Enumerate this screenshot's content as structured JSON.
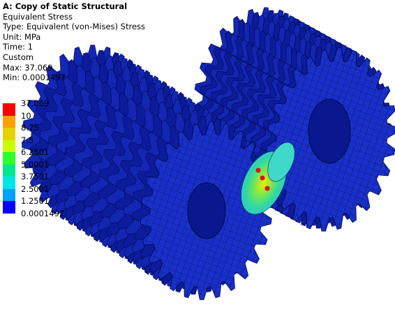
{
  "header": {
    "title": "A: Copy of Static Structural",
    "lines": [
      "Equivalent Stress",
      "Type: Equivalent (von-Mises) Stress",
      "Unit: MPa",
      "Time: 1",
      "Custom",
      "Max: 37.069",
      "Min: 0.0001497"
    ]
  },
  "legend": {
    "labels": [
      "37.069",
      "10",
      "8.75",
      "7.5",
      "6.2501",
      "5.0001",
      "3.7501",
      "2.5001",
      "1.2501",
      "0.0001497"
    ],
    "colors": [
      "#ff0000",
      "#ffa000",
      "#e6d200",
      "#c8ff00",
      "#2dff2d",
      "#00e68c",
      "#00e6e6",
      "#00a0ff",
      "#0000ff"
    ]
  }
}
